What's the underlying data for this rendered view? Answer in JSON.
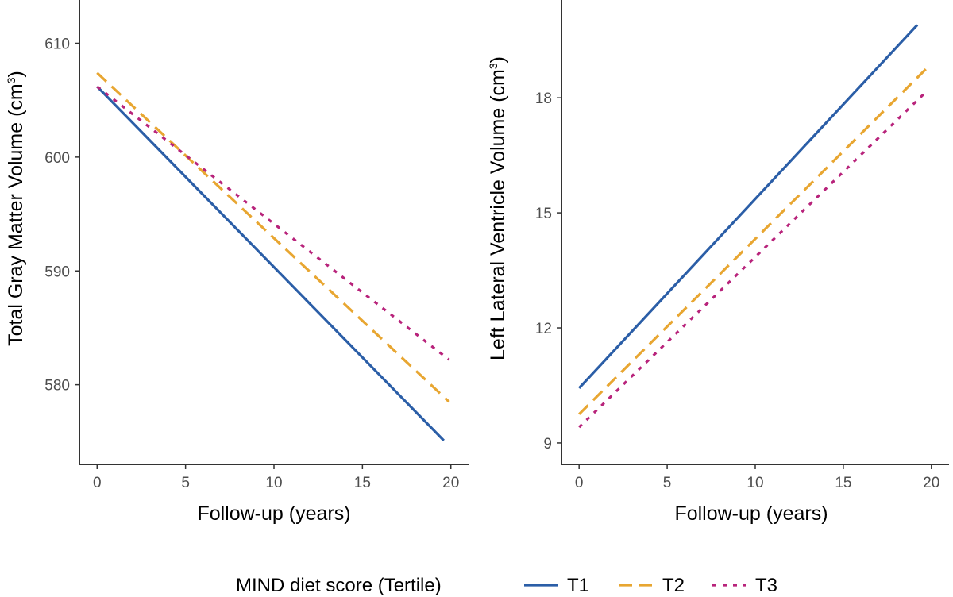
{
  "chart_data": [
    {
      "type": "line",
      "xlabel": "Follow-up (years)",
      "ylabel": "Total Gray Matter Volume (cm",
      "ylabel_sup": "3",
      "ylabel_end": ")",
      "xlim": [
        -1,
        21
      ],
      "ylim": [
        573,
        613.8
      ],
      "xticks": [
        0,
        5,
        10,
        15,
        20
      ],
      "yticks": [
        580,
        590,
        600,
        610
      ],
      "grid": false,
      "series": [
        {
          "name": "T1",
          "x": [
            0,
            19.6
          ],
          "y": [
            606.2,
            575.1
          ]
        },
        {
          "name": "T2",
          "x": [
            0,
            19.9
          ],
          "y": [
            607.4,
            578.5
          ]
        },
        {
          "name": "T3",
          "x": [
            0,
            19.9
          ],
          "y": [
            606.2,
            582.2
          ]
        }
      ]
    },
    {
      "type": "line",
      "xlabel": "Follow-up (years)",
      "ylabel": "Left Lateral Ventricle Volume (cm",
      "ylabel_sup": "3",
      "ylabel_end": ")",
      "xlim": [
        -1,
        21
      ],
      "ylim": [
        8.44,
        20.55
      ],
      "xticks": [
        0,
        5,
        10,
        15,
        20
      ],
      "yticks": [
        9,
        12,
        15,
        18
      ],
      "grid": false,
      "series": [
        {
          "name": "T1",
          "x": [
            0,
            19.2
          ],
          "y": [
            10.43,
            19.9
          ]
        },
        {
          "name": "T2",
          "x": [
            0,
            19.8
          ],
          "y": [
            9.75,
            18.8
          ]
        },
        {
          "name": "T3",
          "x": [
            0,
            19.8
          ],
          "y": [
            9.41,
            18.2
          ]
        }
      ]
    }
  ],
  "legend": {
    "title": "MIND diet score (Tertile)",
    "position": "bottom",
    "items": [
      {
        "label": "T1",
        "color": "#2b5ea7",
        "linetype": "solid"
      },
      {
        "label": "T2",
        "color": "#e8a631",
        "linetype": "dashed"
      },
      {
        "label": "T3",
        "color": "#b8237b",
        "linetype": "dotted"
      }
    ]
  }
}
